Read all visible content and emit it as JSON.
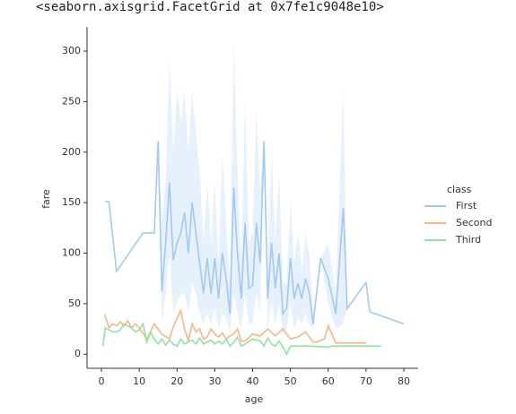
{
  "header": "<seaborn.axisgrid.FacetGrid at 0x7fe1c9048e10>",
  "chart_data": {
    "type": "line",
    "x_label": "age",
    "y_label": "fare",
    "legend_title": "class",
    "xlim": [
      -3.8,
      83.8
    ],
    "ylim": [
      -14,
      324
    ],
    "xticks": [
      0,
      10,
      20,
      30,
      40,
      50,
      60,
      70,
      80
    ],
    "yticks": [
      0,
      50,
      100,
      150,
      200,
      250,
      300
    ],
    "grid": false,
    "legend": "right",
    "series": [
      {
        "name": "First",
        "color": "#a1c9f4",
        "x": [
          0.92,
          2,
          4,
          11,
          14,
          15,
          16,
          17,
          18,
          19,
          20,
          21,
          22,
          23,
          24,
          25,
          26,
          27,
          28,
          29,
          30,
          31,
          32,
          33,
          34,
          35,
          36,
          37,
          38,
          39,
          40,
          41,
          42,
          43,
          44,
          45,
          46,
          47,
          48,
          49,
          50,
          51,
          52,
          53,
          54,
          55,
          56,
          58,
          60,
          62,
          64,
          65,
          70,
          71,
          80
        ],
        "values": [
          151,
          151,
          82,
          120,
          120,
          211,
          62,
          110,
          170,
          93,
          110,
          120,
          140,
          100,
          150,
          120,
          90,
          60,
          95,
          60,
          95,
          55,
          100,
          75,
          40,
          165,
          100,
          55,
          130,
          65,
          68,
          130,
          90,
          211,
          55,
          110,
          65,
          100,
          40,
          45,
          95,
          55,
          70,
          55,
          75,
          60,
          30,
          95,
          75,
          40,
          145,
          45,
          71,
          42,
          30
        ],
        "lower": [
          151,
          151,
          82,
          120,
          120,
          211,
          30,
          60,
          100,
          40,
          50,
          60,
          60,
          40,
          70,
          60,
          40,
          30,
          40,
          30,
          45,
          25,
          40,
          35,
          20,
          60,
          40,
          25,
          60,
          30,
          30,
          60,
          40,
          211,
          25,
          50,
          30,
          50,
          20,
          25,
          50,
          25,
          35,
          30,
          40,
          30,
          25,
          95,
          50,
          25,
          30,
          45,
          71,
          42,
          30
        ],
        "upper": [
          151,
          151,
          82,
          120,
          120,
          211,
          130,
          170,
          290,
          200,
          260,
          230,
          262,
          200,
          260,
          220,
          180,
          110,
          170,
          110,
          170,
          90,
          200,
          130,
          70,
          310,
          180,
          90,
          250,
          110,
          120,
          240,
          160,
          211,
          90,
          200,
          110,
          180,
          70,
          70,
          150,
          90,
          120,
          80,
          120,
          100,
          40,
          95,
          110,
          60,
          262,
          45,
          71,
          42,
          30
        ]
      },
      {
        "name": "Second",
        "color": "#ffb482",
        "x": [
          0.92,
          2,
          3,
          4,
          5,
          6,
          7,
          8,
          9,
          10,
          12,
          14,
          16,
          18,
          19,
          20,
          21,
          22,
          23,
          24,
          25,
          26,
          27,
          28,
          29,
          30,
          31,
          32,
          33,
          34,
          35,
          36,
          37,
          38,
          40,
          42,
          44,
          46,
          48,
          50,
          52,
          54,
          56,
          57,
          59,
          60,
          62,
          64,
          66,
          70
        ],
        "values": [
          39,
          26,
          30,
          28,
          32,
          28,
          33,
          26,
          30,
          26,
          15,
          30,
          20,
          15,
          27,
          35,
          43,
          25,
          13,
          30,
          22,
          25,
          15,
          17,
          25,
          20,
          17,
          21,
          15,
          18,
          20,
          25,
          13,
          13,
          20,
          18,
          25,
          18,
          25,
          15,
          17,
          22,
          12,
          12,
          15,
          28,
          11,
          11,
          11,
          11
        ]
      },
      {
        "name": "Third",
        "color": "#8de5a1",
        "x": [
          0.42,
          1,
          2,
          3,
          4,
          5,
          6,
          7,
          8,
          9,
          10,
          11,
          12,
          13,
          14,
          15,
          16,
          17,
          18,
          19,
          20,
          21,
          22,
          23,
          24,
          25,
          26,
          27,
          28,
          29,
          30,
          31,
          32,
          33,
          34,
          35,
          36,
          37,
          38,
          40,
          42,
          43,
          44,
          45,
          46,
          47,
          48,
          49,
          50,
          55,
          60,
          61,
          65,
          70,
          74
        ],
        "values": [
          8,
          26,
          24,
          22,
          22,
          24,
          30,
          28,
          26,
          22,
          24,
          30,
          12,
          22,
          15,
          10,
          15,
          9,
          14,
          10,
          8,
          15,
          10,
          12,
          14,
          10,
          16,
          10,
          12,
          14,
          10,
          13,
          10,
          15,
          8,
          12,
          17,
          8,
          10,
          15,
          13,
          8,
          16,
          10,
          8,
          13,
          7,
          0,
          8,
          8,
          7,
          8,
          8,
          8,
          8
        ]
      }
    ]
  }
}
